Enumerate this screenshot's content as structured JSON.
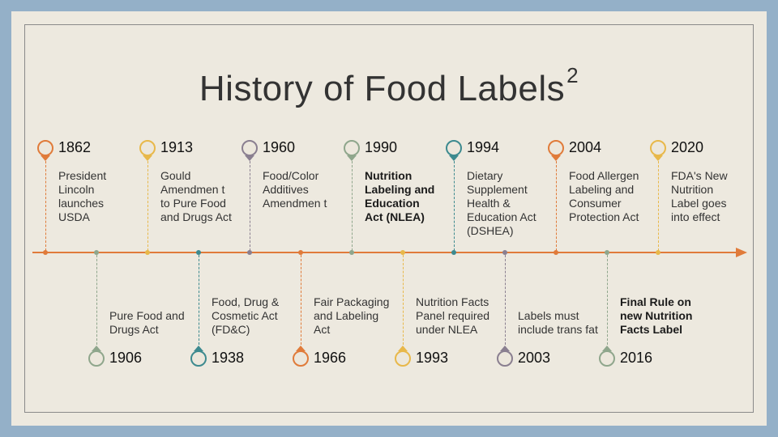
{
  "title": {
    "main": "History of Food Labels",
    "sup": "2"
  },
  "top_events": [
    {
      "year": "1862",
      "text": "President Lincoln launches USDA",
      "bold": false,
      "color": "#e07b3a"
    },
    {
      "year": "1913",
      "text": "Gould Amendmen t to Pure Food and Drugs Act",
      "bold": false,
      "color": "#e8b84a"
    },
    {
      "year": "1960",
      "text": "Food/Color Additives Amendmen t",
      "bold": false,
      "color": "#8a7f90"
    },
    {
      "year": "1990",
      "text": "Nutrition Labeling and Education Act (NLEA)",
      "bold": true,
      "color": "#8fa68c"
    },
    {
      "year": "1994",
      "text": "Dietary Supplement Health & Education Act (DSHEA)",
      "bold": false,
      "color": "#3d8a8f"
    },
    {
      "year": "2004",
      "text": "Food Allergen Labeling and Consumer Protection Act",
      "bold": false,
      "color": "#e07b3a"
    },
    {
      "year": "2020",
      "text": "FDA's New Nutrition Label goes into effect",
      "bold": false,
      "color": "#e8b84a"
    }
  ],
  "bottom_events": [
    {
      "year": "1906",
      "text": "Pure Food and Drugs Act",
      "bold": false,
      "color": "#8fa68c"
    },
    {
      "year": "1938",
      "text": "Food, Drug & Cosmetic Act (FD&C)",
      "bold": false,
      "color": "#3d8a8f"
    },
    {
      "year": "1966",
      "text": "Fair Packaging and Labeling Act",
      "bold": false,
      "color": "#e07b3a"
    },
    {
      "year": "1993",
      "text": "Nutrition Facts Panel required under NLEA",
      "bold": false,
      "color": "#e8b84a"
    },
    {
      "year": "2003",
      "text": "Labels must include trans fat",
      "bold": false,
      "color": "#8a7f90"
    },
    {
      "year": "2016",
      "text": "Final Rule on new Nutrition Facts Label",
      "bold": true,
      "color": "#8fa68c"
    }
  ]
}
